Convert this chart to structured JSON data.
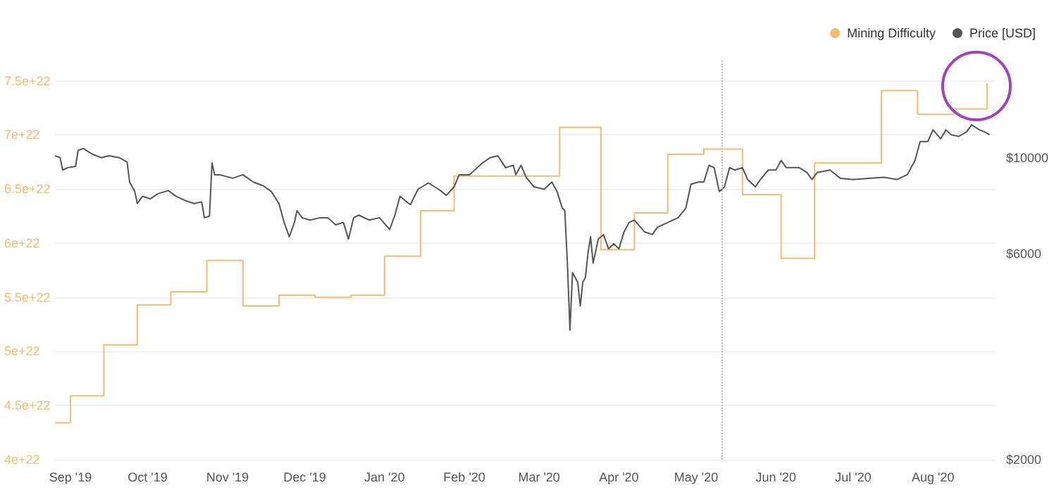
{
  "chart_data": {
    "type": "line",
    "legend": "top right",
    "grid": "y",
    "marker": "none",
    "xlim": [
      "2019-08-26",
      "2020-08-25"
    ],
    "xticks": [
      {
        "value": "2019-09-01",
        "label": "Sep '19"
      },
      {
        "value": "2019-10-01",
        "label": "Oct '19"
      },
      {
        "value": "2019-11-01",
        "label": "Nov '19"
      },
      {
        "value": "2019-12-01",
        "label": "Dec '19"
      },
      {
        "value": "2020-01-01",
        "label": "Jan '20"
      },
      {
        "value": "2020-02-01",
        "label": "Feb '20"
      },
      {
        "value": "2020-03-01",
        "label": "Mar '20"
      },
      {
        "value": "2020-04-01",
        "label": "Apr '20"
      },
      {
        "value": "2020-05-01",
        "label": "May '20"
      },
      {
        "value": "2020-06-01",
        "label": "Jun '20"
      },
      {
        "value": "2020-07-01",
        "label": "Jul '20"
      },
      {
        "value": "2020-08-01",
        "label": "Aug '20"
      }
    ],
    "ylim": [
      4e+22,
      7.7e+22
    ],
    "yticks": [
      {
        "value": 4e+22,
        "label": "4e+22"
      },
      {
        "value": 4.5e+22,
        "label": "4.5e+22"
      },
      {
        "value": 5e+22,
        "label": "5e+22"
      },
      {
        "value": 5.5e+22,
        "label": "5.5e+22"
      },
      {
        "value": 6e+22,
        "label": "6e+22"
      },
      {
        "value": 6.5e+22,
        "label": "6.5e+22"
      },
      {
        "value": 7e+22,
        "label": "7e+22"
      },
      {
        "value": 7.5e+22,
        "label": "7.5e+22"
      }
    ],
    "log": "y2",
    "y2lim": [
      2000,
      16900
    ],
    "y2ticks": [
      {
        "value": 2000,
        "label": "$2000"
      },
      {
        "value": 6000,
        "label": "$6000"
      },
      {
        "value": 10000,
        "label": "$10000"
      }
    ],
    "ref_lines": [
      {
        "axis": "x",
        "value": "2020-05-11",
        "color": "#bbbbbb",
        "line_style": "dotted"
      }
    ],
    "series": [
      {
        "name": "Mining Difficulty",
        "type": "step",
        "color": "#f2bd6e",
        "x": [
          "2019-08-26",
          "2019-09-01",
          "2019-09-14",
          "2019-09-27",
          "2019-10-10",
          "2019-10-24",
          "2019-11-07",
          "2019-11-21",
          "2019-12-05",
          "2019-12-19",
          "2020-01-01",
          "2020-01-15",
          "2020-01-28",
          "2020-03-09",
          "2020-03-25",
          "2020-04-07",
          "2020-04-20",
          "2020-05-04",
          "2020-05-19",
          "2020-06-03",
          "2020-06-16",
          "2020-07-12",
          "2020-07-26",
          "2020-08-09",
          "2020-08-22"
        ],
        "values": [
          4.34e+22,
          4.59e+22,
          5.06e+22,
          5.43e+22,
          5.55e+22,
          5.84e+22,
          5.42e+22,
          5.52e+22,
          5.5e+22,
          5.52e+22,
          5.88e+22,
          6.3e+22,
          6.62e+22,
          7.07e+22,
          5.94e+22,
          6.28e+22,
          6.82e+22,
          6.87e+22,
          6.45e+22,
          5.86e+22,
          6.74e+22,
          7.41e+22,
          7.19e+22,
          7.24e+22,
          7.48e+22
        ]
      },
      {
        "name": "Price [USD]",
        "axis": "y2",
        "color": "#555555",
        "x": [
          "2019-08-26",
          "2019-08-28",
          "2019-08-29",
          "2019-08-31",
          "2019-09-03",
          "2019-09-04",
          "2019-09-06",
          "2019-09-09",
          "2019-09-11",
          "2019-09-13",
          "2019-09-16",
          "2019-09-20",
          "2019-09-23",
          "2019-09-24",
          "2019-09-26",
          "2019-09-27",
          "2019-09-29",
          "2019-10-02",
          "2019-10-05",
          "2019-10-09",
          "2019-10-12",
          "2019-10-16",
          "2019-10-19",
          "2019-10-22",
          "2019-10-23",
          "2019-10-25",
          "2019-10-26",
          "2019-10-27",
          "2019-10-29",
          "2019-11-03",
          "2019-11-07",
          "2019-11-11",
          "2019-11-15",
          "2019-11-18",
          "2019-11-21",
          "2019-11-23",
          "2019-11-25",
          "2019-11-27",
          "2019-11-28",
          "2019-11-30",
          "2019-12-03",
          "2019-12-07",
          "2019-12-10",
          "2019-12-13",
          "2019-12-16",
          "2019-12-18",
          "2019-12-20",
          "2019-12-22",
          "2019-12-26",
          "2019-12-30",
          "2020-01-03",
          "2020-01-05",
          "2020-01-07",
          "2020-01-11",
          "2020-01-14",
          "2020-01-18",
          "2020-01-22",
          "2020-01-25",
          "2020-01-28",
          "2020-01-30",
          "2020-02-03",
          "2020-02-06",
          "2020-02-08",
          "2020-02-11",
          "2020-02-14",
          "2020-02-17",
          "2020-02-20",
          "2020-02-21",
          "2020-02-23",
          "2020-02-25",
          "2020-02-28",
          "2020-03-03",
          "2020-03-06",
          "2020-03-08",
          "2020-03-10",
          "2020-03-11",
          "2020-03-12",
          "2020-03-13",
          "2020-03-14",
          "2020-03-16",
          "2020-03-17",
          "2020-03-18",
          "2020-03-19",
          "2020-03-20",
          "2020-03-21",
          "2020-03-22",
          "2020-03-24",
          "2020-03-26",
          "2020-03-28",
          "2020-03-30",
          "2020-04-01",
          "2020-04-03",
          "2020-04-05",
          "2020-04-07",
          "2020-04-11",
          "2020-04-14",
          "2020-04-16",
          "2020-04-20",
          "2020-04-24",
          "2020-04-27",
          "2020-04-29",
          "2020-05-02",
          "2020-05-04",
          "2020-05-06",
          "2020-05-08",
          "2020-05-10",
          "2020-05-12",
          "2020-05-14",
          "2020-05-16",
          "2020-05-19",
          "2020-05-21",
          "2020-05-24",
          "2020-05-26",
          "2020-05-29",
          "2020-06-01",
          "2020-06-03",
          "2020-06-05",
          "2020-06-10",
          "2020-06-13",
          "2020-06-15",
          "2020-06-17",
          "2020-06-22",
          "2020-06-26",
          "2020-07-01",
          "2020-07-07",
          "2020-07-13",
          "2020-07-18",
          "2020-07-22",
          "2020-07-25",
          "2020-07-27",
          "2020-07-30",
          "2020-08-01",
          "2020-08-04",
          "2020-08-06",
          "2020-08-08",
          "2020-08-11",
          "2020-08-14",
          "2020-08-16",
          "2020-08-19",
          "2020-08-21",
          "2020-08-23"
        ],
        "values": [
          10100,
          10000,
          9360,
          9480,
          9550,
          10400,
          10500,
          10230,
          10100,
          10000,
          10100,
          10000,
          9770,
          8780,
          8350,
          7830,
          8140,
          8030,
          8250,
          8390,
          8140,
          7940,
          7830,
          7900,
          7260,
          7320,
          9720,
          9130,
          9130,
          8960,
          9130,
          8780,
          8600,
          8350,
          7830,
          7080,
          6560,
          7080,
          7540,
          7260,
          7170,
          7260,
          7260,
          6990,
          7080,
          6480,
          7260,
          7360,
          7170,
          7260,
          6820,
          7360,
          8140,
          7780,
          8450,
          8740,
          8450,
          8180,
          8560,
          9130,
          9130,
          9480,
          9720,
          10000,
          10100,
          9480,
          9600,
          9130,
          9600,
          9010,
          8560,
          8450,
          8780,
          8350,
          7640,
          7540,
          5700,
          3990,
          5420,
          5150,
          4540,
          5150,
          5280,
          6000,
          6560,
          5700,
          6480,
          6640,
          6150,
          6320,
          6150,
          6730,
          7080,
          7170,
          6730,
          6640,
          6900,
          7080,
          7260,
          7640,
          8680,
          8780,
          8780,
          9600,
          9480,
          8350,
          8560,
          9480,
          9360,
          9480,
          8900,
          8560,
          8900,
          9360,
          9360,
          9850,
          9480,
          9480,
          9240,
          8900,
          9240,
          9360,
          8960,
          8900,
          8960,
          9010,
          8900,
          9130,
          9850,
          10900,
          10900,
          11600,
          11050,
          11600,
          11300,
          11200,
          11470,
          11910,
          11600,
          11470,
          11300
        ]
      }
    ]
  }
}
